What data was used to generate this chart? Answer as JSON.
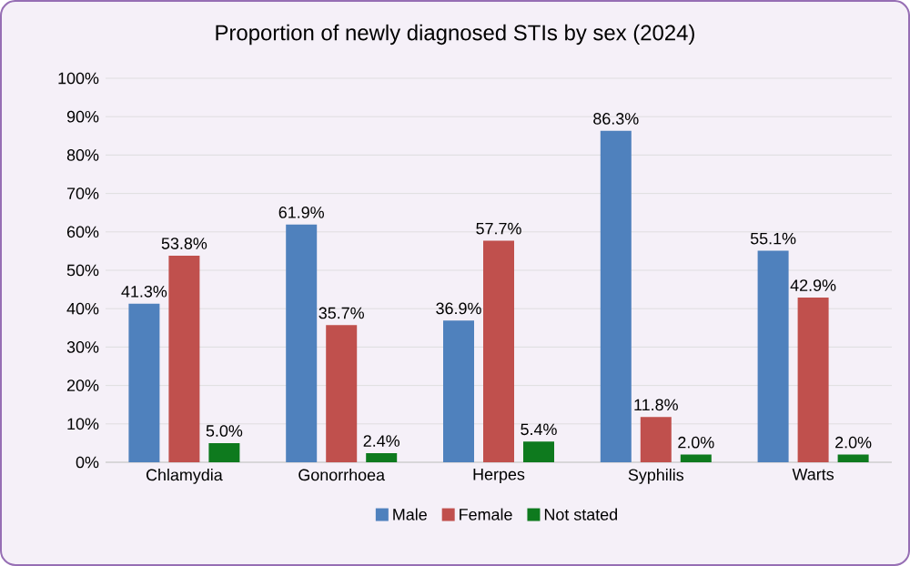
{
  "chart_data": {
    "type": "bar",
    "title": "Proportion of newly diagnosed STIs by sex (2024)",
    "categories": [
      "Chlamydia",
      "Gonorrhoea",
      "Herpes",
      "Syphilis",
      "Warts"
    ],
    "series": [
      {
        "name": "Male",
        "color": "#4f81bd",
        "values": [
          41.3,
          61.9,
          36.9,
          86.3,
          55.1
        ],
        "value_labels": [
          "41.3%",
          "61.9%",
          "36.9%",
          "86.3%",
          "55.1%"
        ]
      },
      {
        "name": "Female",
        "color": "#c0504d",
        "values": [
          53.8,
          35.7,
          57.7,
          11.8,
          42.9
        ],
        "value_labels": [
          "53.8%",
          "35.7%",
          "57.7%",
          "11.8%",
          "42.9%"
        ]
      },
      {
        "name": "Not stated",
        "color": "#0e7a1e",
        "values": [
          5.0,
          2.4,
          5.4,
          2.0,
          2.0
        ],
        "value_labels": [
          "5.0%",
          "2.4%",
          "5.4%",
          "2.0%",
          "2.0%"
        ]
      }
    ],
    "ylim": [
      0,
      100
    ],
    "yticks": [
      {
        "value": 0,
        "label": "0%"
      },
      {
        "value": 10,
        "label": "10%"
      },
      {
        "value": 20,
        "label": "20%"
      },
      {
        "value": 30,
        "label": "30%"
      },
      {
        "value": 40,
        "label": "40%"
      },
      {
        "value": 50,
        "label": "50%"
      },
      {
        "value": 60,
        "label": "60%"
      },
      {
        "value": 70,
        "label": "70%"
      },
      {
        "value": 80,
        "label": "80%"
      },
      {
        "value": 90,
        "label": "90%"
      },
      {
        "value": 100,
        "label": "100%"
      }
    ],
    "grid": "y",
    "legend": "bottom"
  }
}
